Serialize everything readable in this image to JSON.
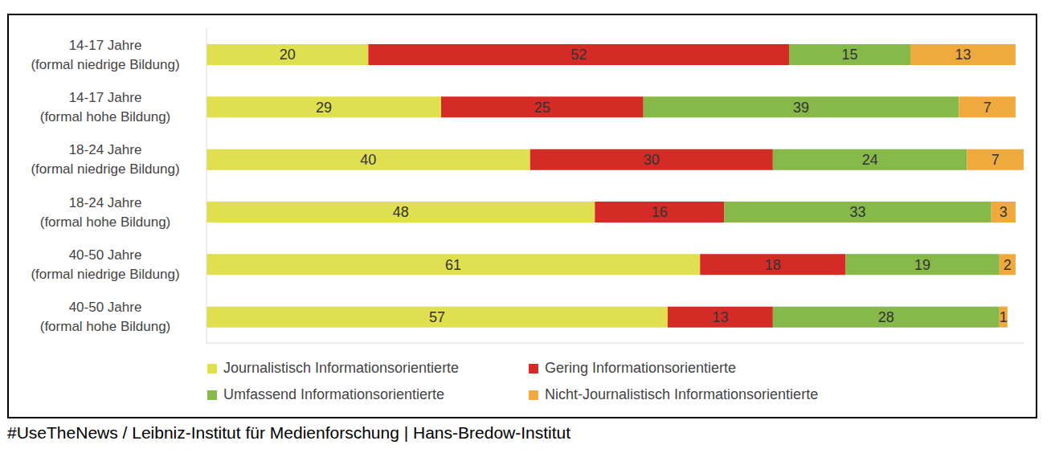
{
  "chart_data": {
    "type": "bar",
    "orientation": "horizontal",
    "stacked": true,
    "data_labels": true,
    "tick_labels": "y",
    "grid": false,
    "legend": "bottom",
    "categories": [
      "14-17 Jahre (formal niedrige Bildung)",
      "14-17 Jahre (formal hohe Bildung)",
      "18-24 Jahre (formal niedrige Bildung)",
      "18-24 Jahre (formal hohe Bildung)",
      "40-50 Jahre (formal niedrige Bildung)",
      "40-50 Jahre (formal hohe Bildung)"
    ],
    "xlim": [
      0,
      101
    ],
    "series": [
      {
        "name": "Journalistisch Informationsorientierte",
        "color": "#dfdf4f",
        "values": [
          20,
          29,
          40,
          48,
          61,
          57
        ]
      },
      {
        "name": "Gering Informationsorientierte",
        "color": "#d42b27",
        "values": [
          52,
          25,
          30,
          16,
          18,
          13
        ]
      },
      {
        "name": "Umfassend Informationsorientierte",
        "color": "#86b94a",
        "values": [
          15,
          39,
          24,
          33,
          19,
          28
        ]
      },
      {
        "name": "Nicht-Journalistisch Informationsorientierte",
        "color": "#f0a93c",
        "values": [
          13,
          7,
          7,
          3,
          2,
          1
        ]
      }
    ],
    "source": "#UseTheNews / Leibniz-Institut für Medienforschung | Hans-Bredow-Institut"
  }
}
